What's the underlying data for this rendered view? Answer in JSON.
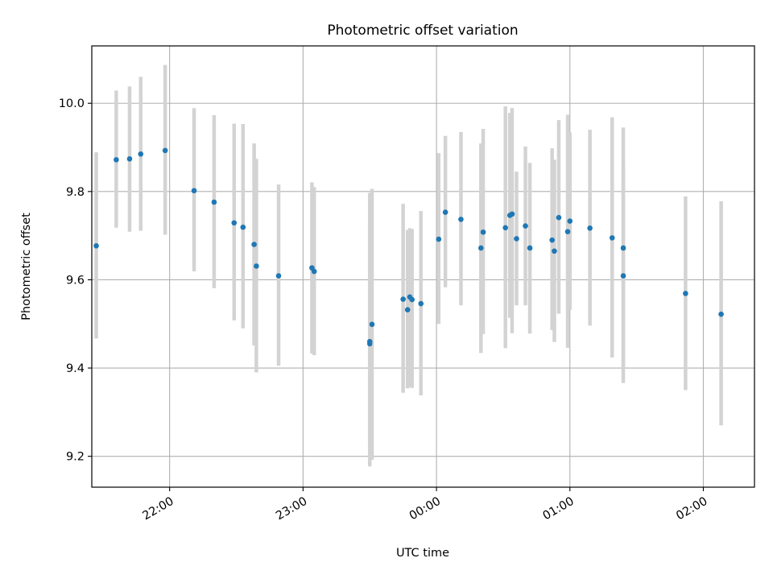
{
  "chart_data": {
    "type": "scatter",
    "title": "Photometric offset variation",
    "xlabel": "UTC time",
    "ylabel": "Photometric offset",
    "grid": true,
    "legend": "none",
    "xlim": [
      "21:25",
      "02:23"
    ],
    "ylim": [
      9.13,
      10.13
    ],
    "x_ticks": [
      "22:00",
      "23:00",
      "00:00",
      "01:00",
      "02:00"
    ],
    "y_ticks": [
      "9.2",
      "9.4",
      "9.6",
      "9.8",
      "10.0"
    ],
    "colors": {
      "points": "#1f77b4",
      "error_bars": "#d3d3d3",
      "grid": "#b0b0b0"
    },
    "series": [
      {
        "x": [
          "21:27",
          "21:36",
          "21:42",
          "21:47",
          "21:58",
          "22:11",
          "22:20",
          "22:29",
          "22:33",
          "22:38",
          "22:39",
          "22:49",
          "23:04",
          "23:05",
          "23:30",
          "23:30",
          "23:31",
          "23:45",
          "23:47",
          "23:48",
          "23:49",
          "23:53",
          "00:01",
          "00:04",
          "00:11",
          "00:20",
          "00:21",
          "00:31",
          "00:33",
          "00:34",
          "00:36",
          "00:40",
          "00:42",
          "00:52",
          "00:53",
          "00:55",
          "00:59",
          "01:00",
          "01:09",
          "01:19",
          "01:24",
          "01:24",
          "01:52",
          "02:08"
        ],
        "y": [
          9.677,
          9.872,
          9.874,
          9.885,
          9.893,
          9.802,
          9.776,
          9.729,
          9.719,
          9.68,
          9.631,
          9.609,
          9.627,
          9.619,
          9.46,
          9.455,
          9.499,
          9.556,
          9.532,
          9.561,
          9.555,
          9.546,
          9.692,
          9.753,
          9.737,
          9.672,
          9.708,
          9.718,
          9.746,
          9.749,
          9.693,
          9.722,
          9.672,
          9.69,
          9.665,
          9.741,
          9.709,
          9.733,
          9.717,
          9.695,
          9.672,
          9.609,
          9.569,
          9.522
        ],
        "err_low": [
          9.467,
          9.718,
          9.709,
          9.711,
          9.702,
          9.619,
          9.581,
          9.508,
          9.49,
          9.451,
          9.39,
          9.405,
          9.433,
          9.429,
          9.222,
          9.177,
          9.192,
          9.344,
          9.354,
          9.357,
          9.355,
          9.338,
          9.5,
          9.583,
          9.542,
          9.434,
          9.477,
          9.445,
          9.514,
          9.479,
          9.542,
          9.542,
          9.478,
          9.486,
          9.459,
          9.523,
          9.446,
          9.532,
          9.496,
          9.424,
          9.402,
          9.366,
          9.35,
          9.27
        ],
        "err_high": [
          9.889,
          10.029,
          10.038,
          10.06,
          10.087,
          9.989,
          9.973,
          9.954,
          9.953,
          9.909,
          9.874,
          9.816,
          9.821,
          9.81,
          9.731,
          9.797,
          9.806,
          9.772,
          9.713,
          9.717,
          9.715,
          9.756,
          9.887,
          9.926,
          9.935,
          9.909,
          9.942,
          9.993,
          9.978,
          9.989,
          9.845,
          9.902,
          9.865,
          9.898,
          9.872,
          9.962,
          9.974,
          9.934,
          9.94,
          9.968,
          9.945,
          9.857,
          9.789,
          9.778
        ]
      }
    ]
  }
}
